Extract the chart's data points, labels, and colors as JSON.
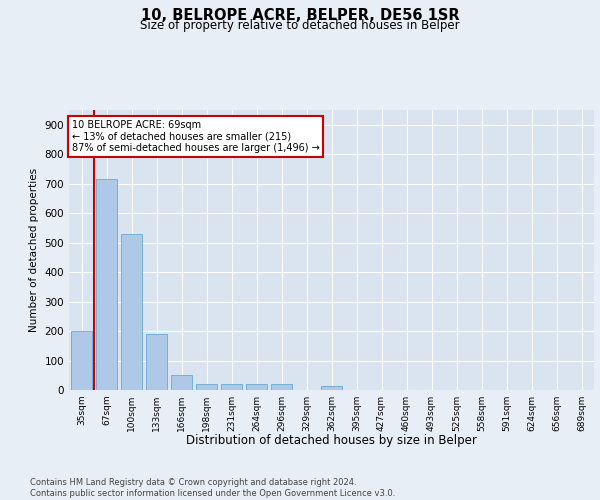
{
  "title": "10, BELROPE ACRE, BELPER, DE56 1SR",
  "subtitle": "Size of property relative to detached houses in Belper",
  "xlabel": "Distribution of detached houses by size in Belper",
  "ylabel": "Number of detached properties",
  "categories": [
    "35sqm",
    "67sqm",
    "100sqm",
    "133sqm",
    "166sqm",
    "198sqm",
    "231sqm",
    "264sqm",
    "296sqm",
    "329sqm",
    "362sqm",
    "395sqm",
    "427sqm",
    "460sqm",
    "493sqm",
    "525sqm",
    "558sqm",
    "591sqm",
    "624sqm",
    "656sqm",
    "689sqm"
  ],
  "values": [
    200,
    715,
    530,
    190,
    50,
    22,
    22,
    22,
    22,
    0,
    14,
    0,
    0,
    0,
    0,
    0,
    0,
    0,
    0,
    0,
    0
  ],
  "bar_color": "#aec8e8",
  "bar_edge_color": "#6aaad4",
  "highlight_line_color": "#cc0000",
  "annotation_line1": "10 BELROPE ACRE: 69sqm",
  "annotation_line2": "← 13% of detached houses are smaller (215)",
  "annotation_line3": "87% of semi-detached houses are larger (1,496) →",
  "annotation_box_edgecolor": "#cc0000",
  "ylim": [
    0,
    950
  ],
  "yticks": [
    0,
    100,
    200,
    300,
    400,
    500,
    600,
    700,
    800,
    900
  ],
  "footnote_line1": "Contains HM Land Registry data © Crown copyright and database right 2024.",
  "footnote_line2": "Contains public sector information licensed under the Open Government Licence v3.0.",
  "bg_color": "#e8eef5",
  "plot_bg_color": "#d9e4f0"
}
